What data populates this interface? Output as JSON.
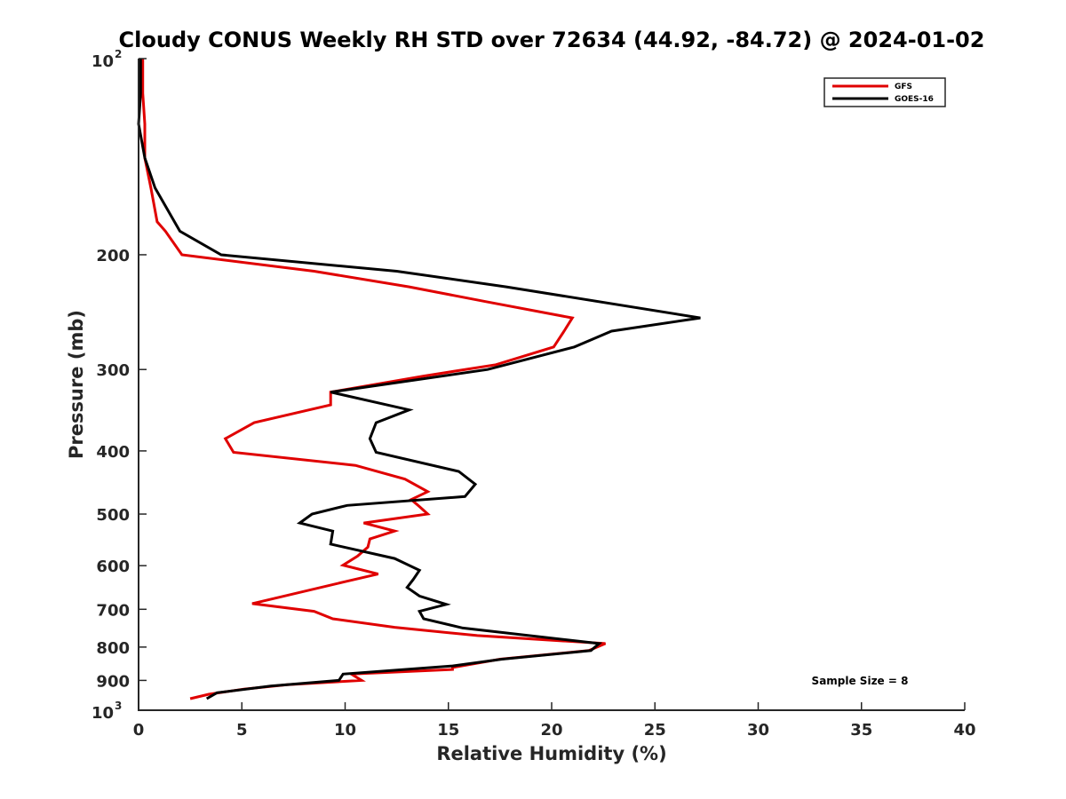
{
  "chart_data": {
    "type": "line",
    "title": "Cloudy CONUS Weekly RH STD over 72634 (44.92, -84.72) @ 2024-01-02",
    "xlabel": "Relative Humidity (%)",
    "ylabel": "Pressure (mb)",
    "xlim": [
      0,
      40
    ],
    "ylim": [
      100,
      1000
    ],
    "y_scale": "log",
    "y_reversed": true,
    "grid": false,
    "legend_position": "top-right",
    "x_ticks": [
      "0",
      "5",
      "10",
      "15",
      "20",
      "25",
      "30",
      "35",
      "40"
    ],
    "y_ticks": [
      {
        "value": 100,
        "base": "10",
        "exp": "2"
      },
      {
        "value": 200,
        "label": "200"
      },
      {
        "value": 300,
        "label": "300"
      },
      {
        "value": 400,
        "label": "400"
      },
      {
        "value": 500,
        "label": "500"
      },
      {
        "value": 600,
        "label": "600"
      },
      {
        "value": 700,
        "label": "700"
      },
      {
        "value": 800,
        "label": "800"
      },
      {
        "value": 900,
        "label": "900"
      },
      {
        "value": 1000,
        "base": "10",
        "exp": "3"
      }
    ],
    "annotation": "Sample Size = 8",
    "series": [
      {
        "name": "GFS",
        "color": "#e00000",
        "points": [
          [
            0.2,
            100
          ],
          [
            0.2,
            113
          ],
          [
            0.3,
            126
          ],
          [
            0.3,
            142
          ],
          [
            0.6,
            158
          ],
          [
            0.9,
            178
          ],
          [
            1.3,
            184
          ],
          [
            2.1,
            200
          ],
          [
            8.5,
            212
          ],
          [
            13.1,
            224
          ],
          [
            16.8,
            236
          ],
          [
            21.0,
            250
          ],
          [
            20.6,
            262
          ],
          [
            20.1,
            277
          ],
          [
            17.3,
            295
          ],
          [
            13.8,
            307
          ],
          [
            9.3,
            325
          ],
          [
            9.3,
            340
          ],
          [
            5.6,
            362
          ],
          [
            4.2,
            383
          ],
          [
            4.6,
            402
          ],
          [
            10.5,
            421
          ],
          [
            12.9,
            442
          ],
          [
            14.0,
            462
          ],
          [
            13.2,
            475
          ],
          [
            13.6,
            487
          ],
          [
            14.0,
            500
          ],
          [
            10.9,
            516
          ],
          [
            12.4,
            531
          ],
          [
            11.2,
            546
          ],
          [
            11.1,
            562
          ],
          [
            10.6,
            580
          ],
          [
            9.9,
            599
          ],
          [
            11.6,
            618
          ],
          [
            10.0,
            635
          ],
          [
            5.5,
            686
          ],
          [
            8.5,
            705
          ],
          [
            9.4,
            724
          ],
          [
            12.4,
            746
          ],
          [
            16.4,
            768
          ],
          [
            22.6,
            790
          ],
          [
            21.8,
            810
          ],
          [
            17.5,
            835
          ],
          [
            15.2,
            860
          ],
          [
            15.2,
            866
          ],
          [
            10.3,
            880
          ],
          [
            10.8,
            900
          ],
          [
            7.2,
            914
          ],
          [
            5.1,
            928
          ],
          [
            3.4,
            945
          ],
          [
            2.5,
            960
          ]
        ]
      },
      {
        "name": "GOES-16",
        "color": "#000000",
        "points": [
          [
            0.1,
            100
          ],
          [
            0.1,
            113
          ],
          [
            0.0,
            126
          ],
          [
            0.3,
            142
          ],
          [
            0.8,
            158
          ],
          [
            2.0,
            184
          ],
          [
            4.0,
            200
          ],
          [
            12.5,
            212
          ],
          [
            17.8,
            224
          ],
          [
            27.2,
            250
          ],
          [
            22.9,
            262
          ],
          [
            21.1,
            277
          ],
          [
            16.9,
            300
          ],
          [
            9.3,
            325
          ],
          [
            13.1,
            346
          ],
          [
            11.5,
            362
          ],
          [
            11.2,
            383
          ],
          [
            11.5,
            402
          ],
          [
            15.5,
            430
          ],
          [
            16.3,
            450
          ],
          [
            15.8,
            470
          ],
          [
            10.1,
            485
          ],
          [
            8.4,
            500
          ],
          [
            7.8,
            516
          ],
          [
            9.4,
            531
          ],
          [
            9.3,
            556
          ],
          [
            12.4,
            585
          ],
          [
            13.6,
            610
          ],
          [
            13.3,
            630
          ],
          [
            13.0,
            648
          ],
          [
            13.6,
            668
          ],
          [
            14.9,
            688
          ],
          [
            13.6,
            705
          ],
          [
            13.8,
            724
          ],
          [
            15.7,
            748
          ],
          [
            22.3,
            790
          ],
          [
            21.9,
            810
          ],
          [
            17.6,
            835
          ],
          [
            15.2,
            855
          ],
          [
            9.9,
            880
          ],
          [
            9.7,
            900
          ],
          [
            6.4,
            918
          ],
          [
            3.8,
            940
          ],
          [
            3.3,
            960
          ]
        ]
      }
    ]
  }
}
